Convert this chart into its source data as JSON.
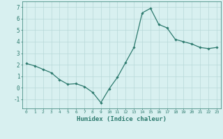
{
  "x": [
    0,
    1,
    2,
    3,
    4,
    5,
    6,
    7,
    8,
    9,
    10,
    11,
    12,
    13,
    14,
    15,
    16,
    17,
    18,
    19,
    20,
    21,
    22,
    23
  ],
  "y": [
    2.1,
    1.9,
    1.6,
    1.3,
    0.7,
    0.3,
    0.35,
    0.1,
    -0.4,
    -1.3,
    -0.1,
    0.9,
    2.2,
    3.5,
    6.5,
    6.9,
    5.5,
    5.2,
    4.2,
    4.0,
    3.8,
    3.5,
    3.4,
    3.5
  ],
  "line_color": "#2d7a6e",
  "marker": "D",
  "markersize": 1.8,
  "linewidth": 0.9,
  "xlabel": "Humidex (Indice chaleur)",
  "xlabel_fontsize": 6.5,
  "bg_color": "#d8f0f0",
  "grid_color": "#b8d8d8",
  "tick_color": "#2d7a6e",
  "label_color": "#2d7a6e",
  "ylim": [
    -1.8,
    7.5
  ],
  "xlim": [
    -0.5,
    23.5
  ],
  "yticks": [
    -1,
    0,
    1,
    2,
    3,
    4,
    5,
    6,
    7
  ],
  "xticks": [
    0,
    1,
    2,
    3,
    4,
    5,
    6,
    7,
    8,
    9,
    10,
    11,
    12,
    13,
    14,
    15,
    16,
    17,
    18,
    19,
    20,
    21,
    22,
    23
  ]
}
